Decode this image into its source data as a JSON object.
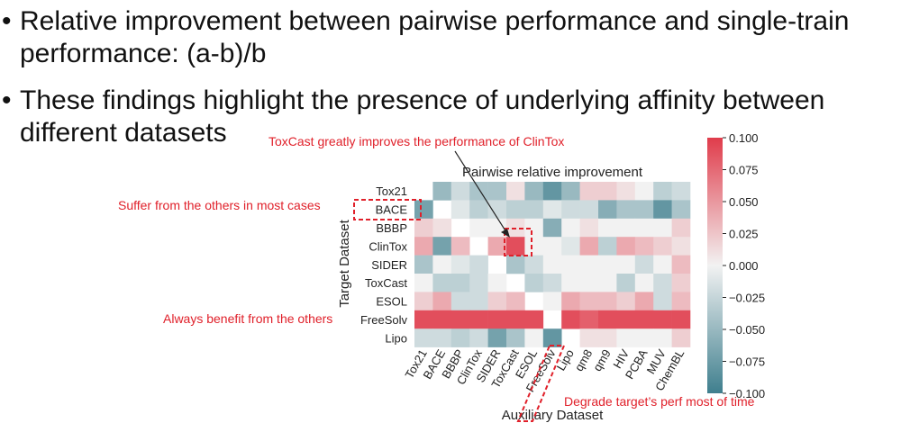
{
  "bullets": [
    {
      "line1": "Relative improvement between pairwise performance and single-train",
      "line2": "performance: (a-b)/b"
    },
    {
      "line1": "These findings highlight the presence of underlying affinity between",
      "line2": "different datasets"
    }
  ],
  "annotations": {
    "toxcast": "ToxCast greatly improves the performance of ClinTox",
    "suffer": "Suffer from the others in most cases",
    "benefit": "Always benefit from the others",
    "degrade": "Degrade target’s perf most of time"
  },
  "colors": {
    "annotation": "#e0202a",
    "positive": "#e03c4b",
    "negative": "#3f7f8e",
    "neutral": "#f2f2f2"
  },
  "chart_data": {
    "type": "heatmap",
    "title": "Pairwise relative improvement",
    "xlabel": "Auxiliary Dataset",
    "ylabel": "Target Dataset",
    "x": [
      "Tox21",
      "BACE",
      "BBBP",
      "ClinTox",
      "SIDER",
      "ToxCast",
      "ESOL",
      "FreeSolv",
      "Lipo",
      "qm8",
      "qm9",
      "HIV",
      "PCBA",
      "MUV",
      "ChemBL"
    ],
    "y": [
      "Tox21",
      "BACE",
      "BBBP",
      "ClinTox",
      "SIDER",
      "ToxCast",
      "ESOL",
      "FreeSolv",
      "Lipo"
    ],
    "values": [
      [
        null,
        -0.05,
        -0.02,
        -0.04,
        -0.04,
        0.01,
        -0.05,
        -0.08,
        -0.05,
        0.02,
        0.02,
        0.01,
        0.0,
        -0.03,
        -0.02
      ],
      [
        -0.07,
        null,
        -0.01,
        -0.03,
        -0.02,
        -0.03,
        -0.03,
        -0.01,
        -0.02,
        -0.02,
        -0.06,
        -0.04,
        -0.04,
        -0.08,
        -0.04
      ],
      [
        0.02,
        0.01,
        null,
        0.0,
        0.0,
        0.01,
        0.0,
        -0.06,
        0.0,
        0.01,
        0.0,
        0.0,
        0.0,
        0.0,
        0.02
      ],
      [
        0.04,
        -0.07,
        0.03,
        null,
        0.04,
        0.09,
        0.0,
        0.0,
        -0.01,
        0.04,
        -0.03,
        0.04,
        0.03,
        0.02,
        0.01
      ],
      [
        -0.04,
        0.0,
        -0.01,
        -0.02,
        null,
        -0.04,
        -0.02,
        0.0,
        0.0,
        0.0,
        0.0,
        0.0,
        -0.02,
        0.0,
        0.03
      ],
      [
        0.0,
        -0.03,
        -0.03,
        -0.02,
        0.0,
        null,
        -0.03,
        -0.02,
        0.0,
        0.0,
        0.0,
        -0.03,
        0.0,
        -0.02,
        0.02
      ],
      [
        0.02,
        0.04,
        -0.02,
        -0.02,
        0.02,
        0.03,
        null,
        0.0,
        0.04,
        0.03,
        0.03,
        0.02,
        0.04,
        -0.02,
        0.03
      ],
      [
        0.09,
        0.09,
        0.09,
        0.09,
        0.09,
        0.09,
        0.09,
        null,
        0.09,
        0.08,
        0.09,
        0.09,
        0.09,
        0.09,
        0.09
      ],
      [
        -0.02,
        -0.02,
        -0.03,
        -0.02,
        -0.07,
        -0.04,
        0.0,
        -0.08,
        null,
        0.01,
        0.01,
        0.0,
        0.0,
        0.0,
        0.02
      ]
    ],
    "colorbar": {
      "ticks": [
        "0.100",
        "0.075",
        "0.050",
        "0.025",
        "0.000",
        "−0.025",
        "−0.050",
        "−0.075",
        "−0.100"
      ],
      "vmin": -0.1,
      "vmax": 0.1
    },
    "grid": false
  }
}
